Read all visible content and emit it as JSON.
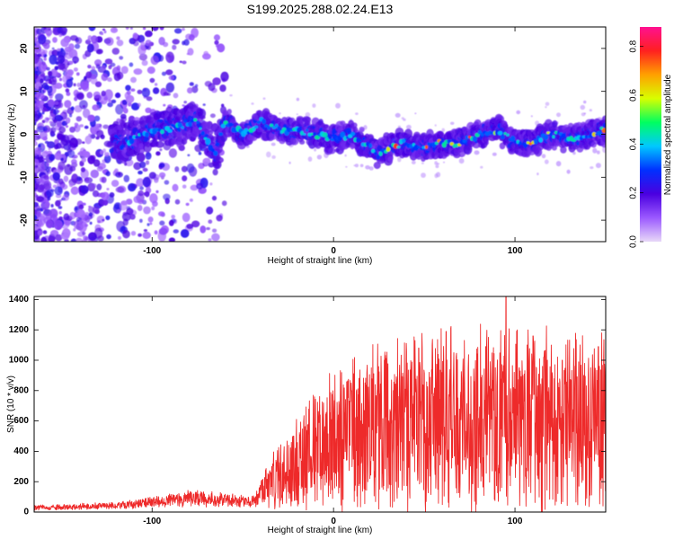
{
  "title": "S199.2025.288.02.24.E13",
  "chart_data": [
    {
      "type": "heatmap",
      "xlabel": "Height of straight line (km)",
      "ylabel": "Frequency (Hz)",
      "xlim": [
        -165,
        150
      ],
      "ylim": [
        -25,
        25
      ],
      "xticks": [
        -100,
        0,
        100
      ],
      "yticks": [
        -20,
        -10,
        0,
        10,
        20
      ],
      "ridge": [
        [
          -115,
          -2
        ],
        [
          -105,
          0
        ],
        [
          -95,
          1
        ],
        [
          -85,
          2
        ],
        [
          -75,
          3
        ],
        [
          -65,
          -5
        ],
        [
          -60,
          3
        ],
        [
          -50,
          0
        ],
        [
          -40,
          3
        ],
        [
          -30,
          1
        ],
        [
          -20,
          1
        ],
        [
          -10,
          0
        ],
        [
          0,
          -1
        ],
        [
          10,
          0
        ],
        [
          20,
          -3
        ],
        [
          25,
          -5
        ],
        [
          30,
          -3
        ],
        [
          40,
          -2
        ],
        [
          50,
          -3
        ],
        [
          60,
          -2
        ],
        [
          70,
          -2
        ],
        [
          80,
          0
        ],
        [
          90,
          1
        ],
        [
          100,
          -2
        ],
        [
          110,
          -2
        ],
        [
          120,
          0
        ],
        [
          130,
          -1
        ],
        [
          140,
          0
        ],
        [
          150,
          1
        ]
      ],
      "colorbar": {
        "label": "Normalized spectral amplitude",
        "ticks": [
          "0.0",
          "0.2",
          "0.4",
          "0.6",
          "0.8"
        ],
        "range": [
          0,
          0.88
        ],
        "colors": [
          "#e8d8f8",
          "#9b59ff",
          "#4a00e0",
          "#0030ff",
          "#00c8ff",
          "#00ff60",
          "#d8ff00",
          "#ffa000",
          "#ff2020",
          "#ff1090"
        ]
      }
    },
    {
      "type": "line",
      "xlabel": "Height of straight line (km)",
      "ylabel": "SNR (10 * v/v)",
      "xlim": [
        -165,
        150
      ],
      "ylim": [
        0,
        1420
      ],
      "xticks": [
        -100,
        0,
        100
      ],
      "yticks": [
        0,
        200,
        400,
        600,
        800,
        1000,
        1200,
        1400
      ],
      "color": "#ee2a2a",
      "envelope": [
        [
          -165,
          30
        ],
        [
          -120,
          40
        ],
        [
          -100,
          65
        ],
        [
          -80,
          90
        ],
        [
          -60,
          80
        ],
        [
          -45,
          65
        ],
        [
          -38,
          160
        ],
        [
          -30,
          220
        ],
        [
          -20,
          320
        ],
        [
          -10,
          400
        ],
        [
          0,
          470
        ],
        [
          10,
          520
        ],
        [
          20,
          560
        ],
        [
          40,
          590
        ],
        [
          60,
          610
        ],
        [
          80,
          630
        ],
        [
          100,
          620
        ],
        [
          120,
          610
        ],
        [
          150,
          600
        ]
      ],
      "peaks": [
        [
          -34,
          300
        ],
        [
          -22,
          500
        ],
        [
          -8,
          590
        ],
        [
          10,
          800
        ],
        [
          28,
          1000
        ],
        [
          47,
          1080
        ],
        [
          62,
          1190
        ],
        [
          84,
          1090
        ],
        [
          95,
          1420
        ],
        [
          110,
          1160
        ],
        [
          116,
          1020
        ],
        [
          126,
          1000
        ],
        [
          138,
          900
        ],
        [
          146,
          1090
        ]
      ]
    }
  ]
}
